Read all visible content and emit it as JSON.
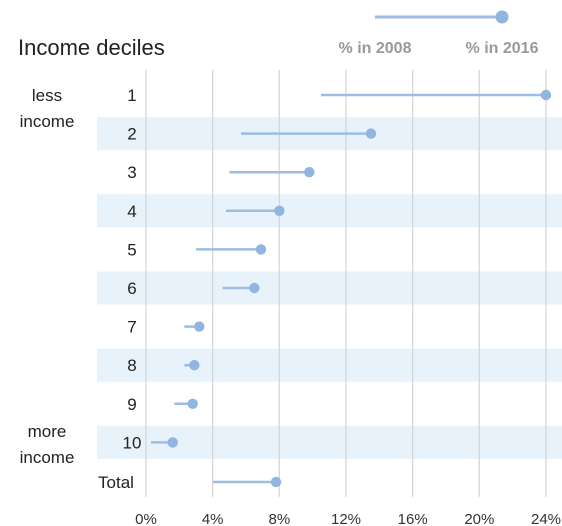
{
  "chart_data": {
    "type": "dumbbell",
    "title": "Income deciles",
    "legend": {
      "start_label": "% in 2008",
      "end_label": "% in 2016",
      "placement": "top-right"
    },
    "side_labels": {
      "top": [
        "less",
        "income"
      ],
      "bottom": [
        "more",
        "income"
      ]
    },
    "categories": [
      "1",
      "2",
      "3",
      "4",
      "5",
      "6",
      "7",
      "8",
      "9",
      "10",
      "Total"
    ],
    "series": [
      {
        "name": "% in 2008",
        "values": [
          10.5,
          5.7,
          5.0,
          4.8,
          3.0,
          4.6,
          2.3,
          2.3,
          1.7,
          0.3,
          4.0
        ]
      },
      {
        "name": "% in 2016",
        "values": [
          24.0,
          13.5,
          9.8,
          8.0,
          6.9,
          6.5,
          3.2,
          2.9,
          2.8,
          1.6,
          7.8
        ]
      }
    ],
    "x_ticks": [
      "0%",
      "4%",
      "8%",
      "12%",
      "16%",
      "20%",
      "24%"
    ],
    "x_tick_values": [
      0,
      4,
      8,
      12,
      16,
      20,
      24
    ],
    "xlim": [
      0,
      24
    ],
    "grid": "vertical",
    "colors": {
      "line": "#9dbde2",
      "dot": "#8fb5e0",
      "band": "#e7f2fb",
      "grid": "#d4d4d4"
    }
  }
}
